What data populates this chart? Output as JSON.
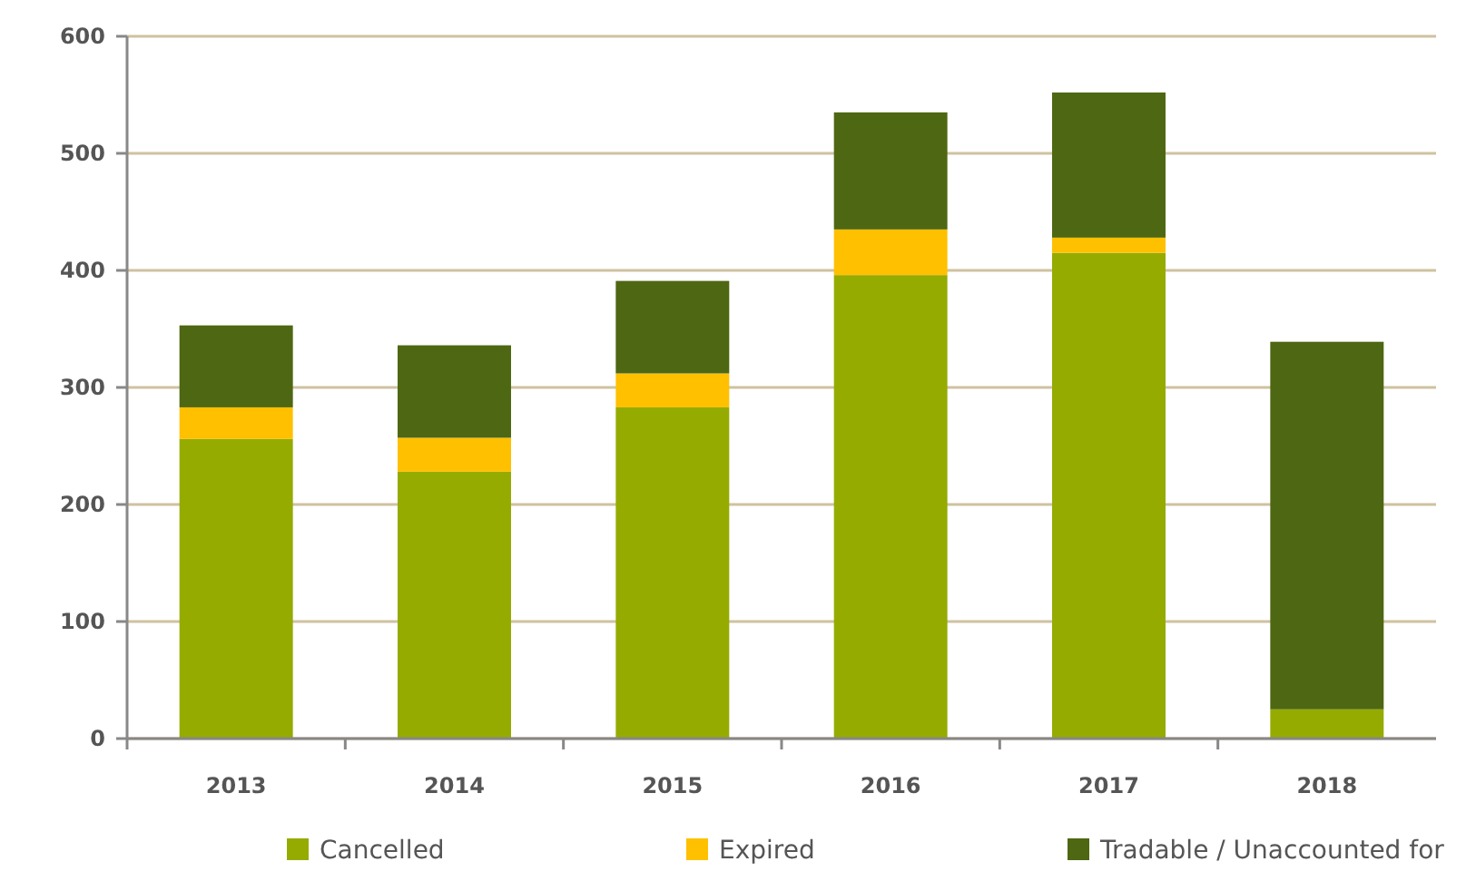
{
  "chart_data": {
    "type": "bar",
    "stacked": true,
    "categories": [
      "2013",
      "2014",
      "2015",
      "2016",
      "2017",
      "2018"
    ],
    "series": [
      {
        "name": "Cancelled",
        "color": "#95ab00",
        "values": [
          256,
          228,
          283,
          396,
          415,
          25
        ]
      },
      {
        "name": "Expired",
        "color": "#ffc000",
        "values": [
          27,
          29,
          29,
          39,
          13,
          0
        ]
      },
      {
        "name": "Tradable / Unaccounted for",
        "color": "#4e6712",
        "values": [
          70,
          79,
          79,
          100,
          124,
          314
        ]
      }
    ],
    "ylim": [
      0,
      600
    ],
    "yticks": [
      0,
      100,
      200,
      300,
      400,
      500,
      600
    ],
    "grid": "y",
    "legend": "bottom"
  }
}
